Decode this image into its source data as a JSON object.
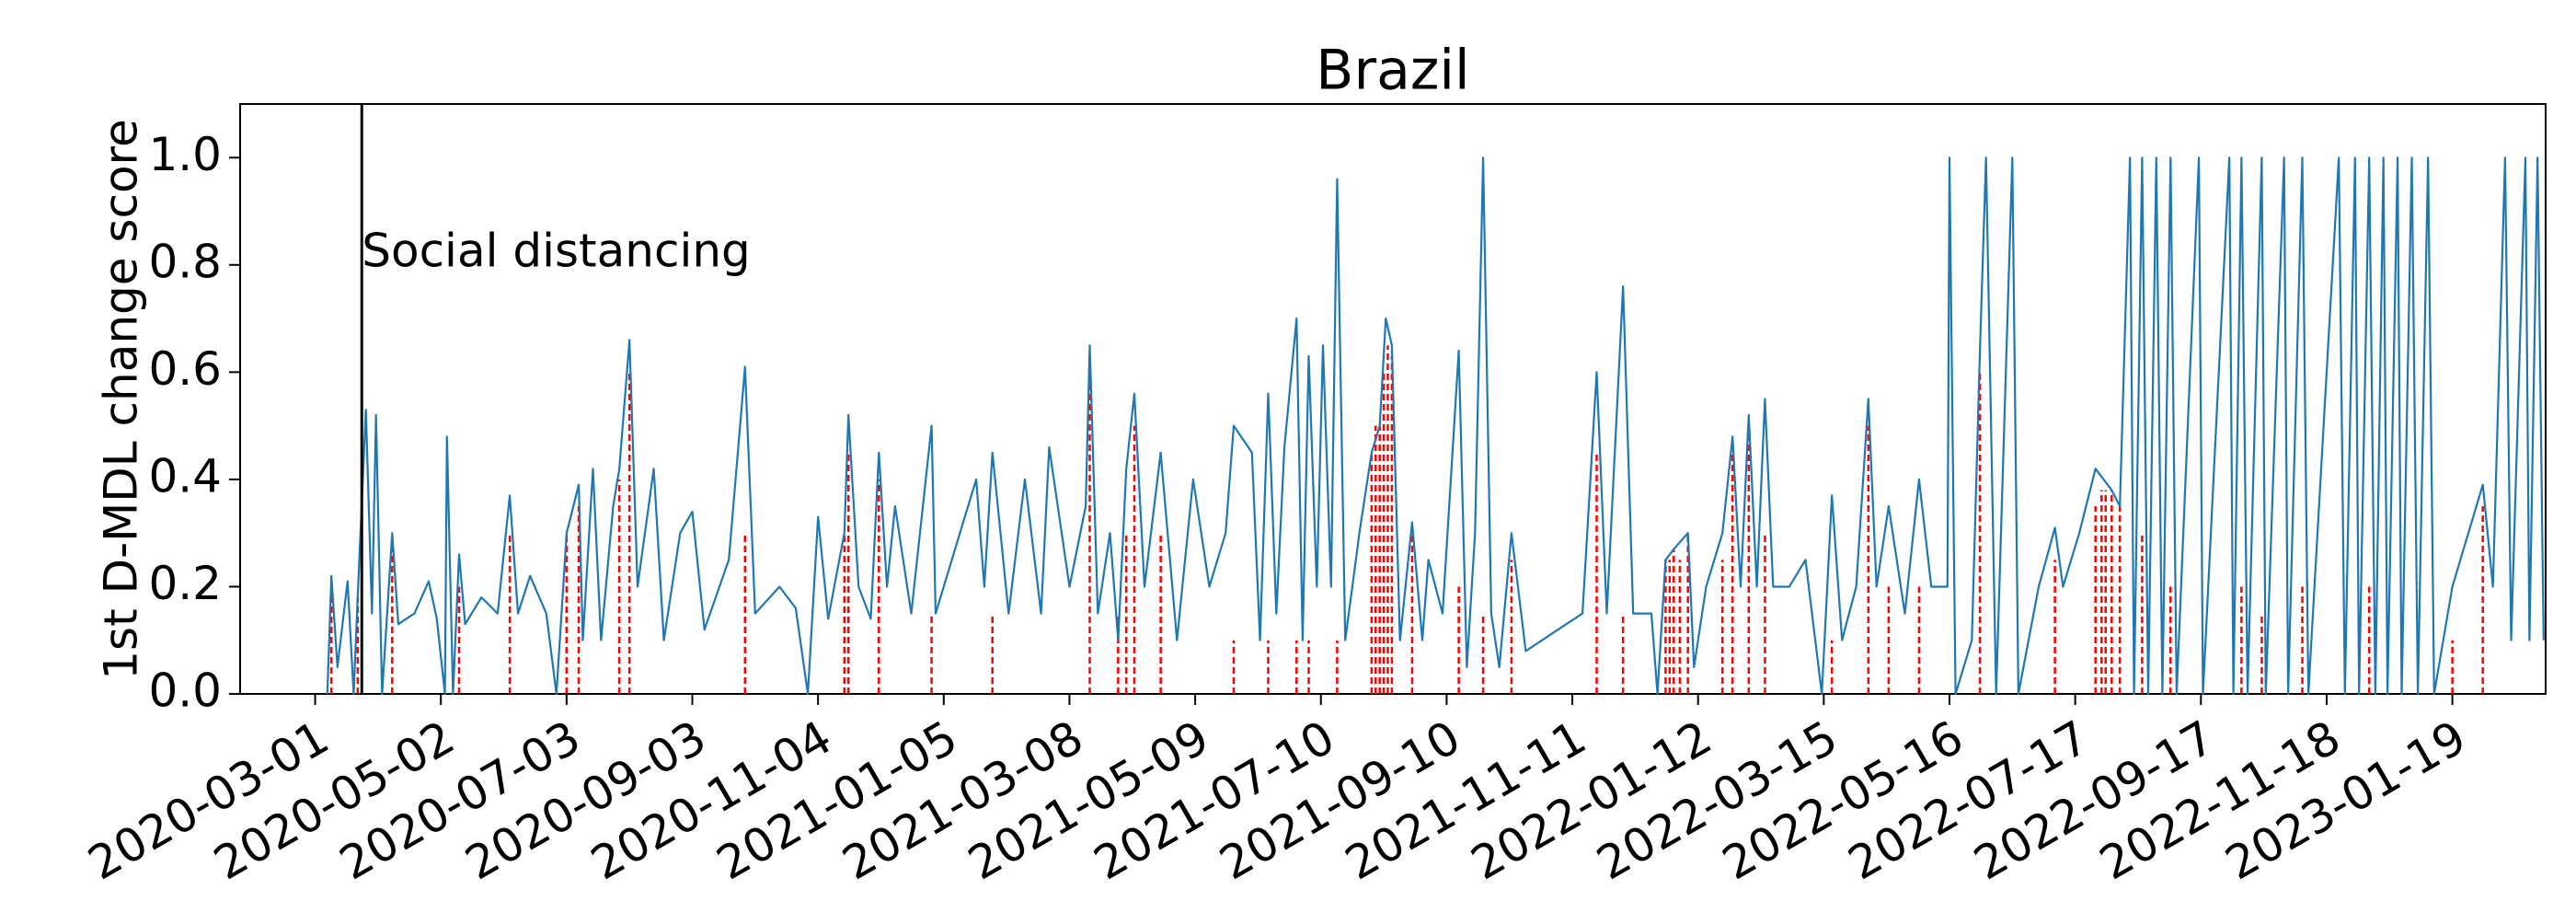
{
  "chart_data": {
    "type": "line",
    "title": "Brazil",
    "y_label": "1st D-MDL change score",
    "xlim": [
      "2020-01-24",
      "2023-03-06"
    ],
    "xticks": [
      "2020-03-01",
      "2020-05-02",
      "2020-07-03",
      "2020-09-03",
      "2020-11-04",
      "2021-01-05",
      "2021-03-08",
      "2021-05-09",
      "2021-07-10",
      "2021-09-10",
      "2021-11-11",
      "2022-01-12",
      "2022-03-15",
      "2022-05-16",
      "2022-07-17",
      "2022-09-17",
      "2022-11-18",
      "2023-01-19"
    ],
    "ylim": [
      0,
      1.1
    ],
    "yticks": [
      {
        "value": 0,
        "label": "0.0"
      },
      0.2,
      0.4,
      0.6,
      0.8,
      {
        "value": 1,
        "label": "1.0"
      }
    ],
    "events": [
      {
        "x": "2020-03-24",
        "label": "Social distancing",
        "color": "#000000"
      }
    ],
    "series": [
      {
        "color": "#1f77b4",
        "x": [
          "2020-03-07",
          "2020-03-09",
          "2020-03-12",
          "2020-03-17",
          "2020-03-20",
          "2020-03-22",
          "2020-03-26",
          "2020-03-29",
          "2020-03-31",
          "2020-04-03",
          "2020-04-08",
          "2020-04-11",
          "2020-04-19",
          "2020-04-26",
          "2020-04-30",
          "2020-05-04",
          "2020-05-05",
          "2020-05-08",
          "2020-05-11",
          "2020-05-14",
          "2020-05-22",
          "2020-05-30",
          "2020-06-05",
          "2020-06-09",
          "2020-06-15",
          "2020-06-23",
          "2020-06-28",
          "2020-07-03",
          "2020-07-09",
          "2020-07-11",
          "2020-07-16",
          "2020-07-20",
          "2020-07-26",
          "2020-07-29",
          "2020-08-03",
          "2020-08-07",
          "2020-08-15",
          "2020-08-20",
          "2020-08-28",
          "2020-09-03",
          "2020-09-09",
          "2020-09-21",
          "2020-09-29",
          "2020-10-04",
          "2020-10-16",
          "2020-10-24",
          "2020-10-30",
          "2020-11-04",
          "2020-11-09",
          "2020-11-17",
          "2020-11-19",
          "2020-11-24",
          "2020-11-30",
          "2020-12-04",
          "2020-12-08",
          "2020-12-12",
          "2020-12-20",
          "2020-12-30",
          "2021-01-01",
          "2021-01-13",
          "2021-01-21",
          "2021-01-25",
          "2021-01-29",
          "2021-02-06",
          "2021-02-14",
          "2021-02-22",
          "2021-02-26",
          "2021-03-08",
          "2021-03-16",
          "2021-03-18",
          "2021-03-22",
          "2021-03-28",
          "2021-04-01",
          "2021-04-05",
          "2021-04-09",
          "2021-04-14",
          "2021-04-22",
          "2021-04-30",
          "2021-05-08",
          "2021-05-16",
          "2021-05-24",
          "2021-05-28",
          "2021-06-06",
          "2021-06-10",
          "2021-06-14",
          "2021-06-18",
          "2021-06-22",
          "2021-06-28",
          "2021-07-01",
          "2021-07-04",
          "2021-07-08",
          "2021-07-11",
          "2021-07-15",
          "2021-07-18",
          "2021-07-22",
          "2021-07-29",
          "2021-08-04",
          "2021-08-08",
          "2021-08-11",
          "2021-08-14",
          "2021-08-18",
          "2021-08-24",
          "2021-08-29",
          "2021-09-01",
          "2021-09-08",
          "2021-09-16",
          "2021-09-20",
          "2021-09-24",
          "2021-09-28",
          "2021-10-02",
          "2021-10-06",
          "2021-10-12",
          "2021-10-19",
          "2021-11-04",
          "2021-11-16",
          "2021-11-23",
          "2021-11-28",
          "2021-12-06",
          "2021-12-11",
          "2021-12-20",
          "2021-12-23",
          "2021-12-27",
          "2021-12-31",
          "2022-01-07",
          "2022-01-10",
          "2022-01-16",
          "2022-01-24",
          "2022-01-29",
          "2022-02-02",
          "2022-02-06",
          "2022-02-10",
          "2022-02-14",
          "2022-02-18",
          "2022-02-26",
          "2022-03-06",
          "2022-03-14",
          "2022-03-19",
          "2022-03-24",
          "2022-03-31",
          "2022-04-06",
          "2022-04-10",
          "2022-04-16",
          "2022-04-24",
          "2022-05-01",
          "2022-05-07",
          "2022-05-15",
          "2022-05-16",
          "2022-05-19",
          "2022-05-27",
          "2022-05-31",
          "2022-06-03",
          "2022-06-08",
          "2022-06-16",
          "2022-06-19",
          "2022-06-29",
          "2022-07-07",
          "2022-07-11",
          "2022-07-19",
          "2022-07-27",
          "2022-08-04",
          "2022-08-08",
          "2022-08-13",
          "2022-08-15",
          "2022-08-19",
          "2022-08-22",
          "2022-08-26",
          "2022-08-29",
          "2022-09-02",
          "2022-09-05",
          "2022-09-16",
          "2022-09-18",
          "2022-10-01",
          "2022-10-03",
          "2022-10-07",
          "2022-10-10",
          "2022-10-17",
          "2022-10-19",
          "2022-10-28",
          "2022-10-30",
          "2022-11-06",
          "2022-11-09",
          "2022-11-24",
          "2022-11-27",
          "2022-12-02",
          "2022-12-04",
          "2022-12-09",
          "2022-12-12",
          "2022-12-16",
          "2022-12-18",
          "2022-12-23",
          "2022-12-25",
          "2022-12-30",
          "2023-01-02",
          "2023-01-07",
          "2023-01-10",
          "2023-01-19",
          "2023-02-03",
          "2023-02-08",
          "2023-02-14",
          "2023-02-17",
          "2023-02-24",
          "2023-02-26",
          "2023-03-02",
          "2023-03-05"
        ],
        "values": [
          0.0,
          0.22,
          0.05,
          0.21,
          0.0,
          0.18,
          0.53,
          0.15,
          0.52,
          0.0,
          0.3,
          0.13,
          0.15,
          0.21,
          0.14,
          0.0,
          0.48,
          0.0,
          0.26,
          0.13,
          0.18,
          0.15,
          0.37,
          0.15,
          0.22,
          0.15,
          0.0,
          0.3,
          0.39,
          0.1,
          0.42,
          0.1,
          0.35,
          0.42,
          0.66,
          0.2,
          0.42,
          0.1,
          0.3,
          0.34,
          0.12,
          0.25,
          0.61,
          0.15,
          0.2,
          0.16,
          0.0,
          0.33,
          0.14,
          0.3,
          0.52,
          0.2,
          0.14,
          0.45,
          0.2,
          0.35,
          0.15,
          0.5,
          0.15,
          0.3,
          0.4,
          0.2,
          0.45,
          0.15,
          0.4,
          0.15,
          0.46,
          0.2,
          0.35,
          0.65,
          0.15,
          0.3,
          0.1,
          0.42,
          0.56,
          0.2,
          0.45,
          0.1,
          0.4,
          0.2,
          0.3,
          0.5,
          0.45,
          0.1,
          0.56,
          0.15,
          0.46,
          0.7,
          0.1,
          0.63,
          0.2,
          0.65,
          0.2,
          0.96,
          0.1,
          0.3,
          0.45,
          0.5,
          0.7,
          0.65,
          0.1,
          0.32,
          0.1,
          0.25,
          0.15,
          0.64,
          0.05,
          0.3,
          1.0,
          0.15,
          0.05,
          0.3,
          0.08,
          0.12,
          0.15,
          0.6,
          0.15,
          0.76,
          0.15,
          0.15,
          0.0,
          0.25,
          0.27,
          0.3,
          0.05,
          0.2,
          0.3,
          0.48,
          0.2,
          0.52,
          0.2,
          0.55,
          0.2,
          0.2,
          0.25,
          0.0,
          0.37,
          0.1,
          0.2,
          0.55,
          0.2,
          0.35,
          0.15,
          0.4,
          0.2,
          0.2,
          1.0,
          0.0,
          0.1,
          0.64,
          1.0,
          0.0,
          1.0,
          0.0,
          0.2,
          0.31,
          0.2,
          0.3,
          0.42,
          0.38,
          0.35,
          1.0,
          0.0,
          1.0,
          0.0,
          1.0,
          0.0,
          1.0,
          0.0,
          1.0,
          0.0,
          1.0,
          0.0,
          1.0,
          0.0,
          1.0,
          0.0,
          1.0,
          0.0,
          1.0,
          0.0,
          1.0,
          0.0,
          1.0,
          0.0,
          1.0,
          0.0,
          1.0,
          0.0,
          1.0,
          0.0,
          1.0,
          0.0,
          1.0,
          0.0,
          0.2,
          0.39,
          0.2,
          1.0,
          0.1,
          1.0,
          0.1,
          1.0,
          0.1
        ]
      }
    ],
    "alarms": {
      "color": "#ff0000",
      "x": [
        "2020-03-09",
        "2020-03-22",
        "2020-04-08",
        "2020-05-11",
        "2020-06-05",
        "2020-07-03",
        "2020-07-09",
        "2020-07-29",
        "2020-08-03",
        "2020-09-29",
        "2020-11-17",
        "2020-11-19",
        "2020-12-04",
        "2020-12-30",
        "2021-01-29",
        "2021-03-18",
        "2021-04-01",
        "2021-04-05",
        "2021-04-09",
        "2021-04-22",
        "2021-05-28",
        "2021-06-14",
        "2021-06-28",
        "2021-07-04",
        "2021-07-18",
        "2021-08-04",
        "2021-08-06",
        "2021-08-08",
        "2021-08-10",
        "2021-08-12",
        "2021-08-14",
        "2021-08-24",
        "2021-09-16",
        "2021-09-28",
        "2021-10-12",
        "2021-11-23",
        "2021-12-06",
        "2021-12-27",
        "2021-12-29",
        "2021-12-31",
        "2022-01-03",
        "2022-01-07",
        "2022-01-24",
        "2022-01-29",
        "2022-02-06",
        "2022-02-14",
        "2022-03-19",
        "2022-04-06",
        "2022-04-16",
        "2022-05-01",
        "2022-05-31",
        "2022-07-07",
        "2022-07-27",
        "2022-07-30",
        "2022-08-01",
        "2022-08-04",
        "2022-08-08",
        "2022-08-19",
        "2022-09-02",
        "2022-10-07",
        "2022-10-17",
        "2022-11-06",
        "2022-12-09",
        "2023-01-19",
        "2023-02-03"
      ],
      "values": [
        0.2,
        0.18,
        0.3,
        0.2,
        0.3,
        0.3,
        0.35,
        0.4,
        0.6,
        0.3,
        0.3,
        0.45,
        0.4,
        0.15,
        0.15,
        0.6,
        0.15,
        0.3,
        0.5,
        0.3,
        0.1,
        0.1,
        0.1,
        0.1,
        0.1,
        0.45,
        0.5,
        0.5,
        0.6,
        0.65,
        0.63,
        0.3,
        0.2,
        0.15,
        0.25,
        0.45,
        0.15,
        0.25,
        0.25,
        0.27,
        0.25,
        0.3,
        0.25,
        0.45,
        0.5,
        0.3,
        0.1,
        0.5,
        0.2,
        0.2,
        0.6,
        0.25,
        0.35,
        0.38,
        0.38,
        0.38,
        0.35,
        0.3,
        0.2,
        0.2,
        0.15,
        0.2,
        0.2,
        0.1,
        0.35
      ]
    }
  }
}
